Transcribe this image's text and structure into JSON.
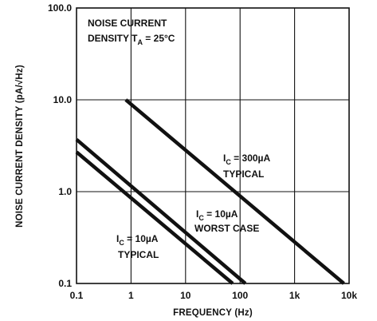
{
  "chart_data": {
    "type": "line",
    "xscale": "log",
    "yscale": "log",
    "xlim": [
      0.1,
      10000
    ],
    "ylim": [
      0.1,
      100
    ],
    "grid": true,
    "xlabel": "FREQUENCY (Hz)",
    "ylabel": "NOISE CURRENT DENSITY (pA/√Hz)",
    "x_ticks": [
      {
        "value": 0.1,
        "label": "0.1"
      },
      {
        "value": 1,
        "label": "1"
      },
      {
        "value": 10,
        "label": "10"
      },
      {
        "value": 100,
        "label": "100"
      },
      {
        "value": 1000,
        "label": "1k"
      },
      {
        "value": 10000,
        "label": "10k"
      }
    ],
    "y_ticks": [
      {
        "value": 0.1,
        "label": "0.1"
      },
      {
        "value": 1,
        "label": "1.0"
      },
      {
        "value": 10,
        "label": "10.0"
      },
      {
        "value": 100,
        "label": "100.0"
      }
    ],
    "conditions": {
      "line1": "NOISE CURRENT",
      "line2_main": "DENSITY T",
      "line2_sub": "A",
      "line2_rest": " = 25°C"
    },
    "series": [
      {
        "x": [
          0.8,
          8000
        ],
        "y": [
          10,
          0.1
        ],
        "label": {
          "prefix": "I",
          "sub": "C",
          "rest": " = 300µA",
          "line2": "TYPICAL"
        }
      },
      {
        "x": [
          0.1,
          125
        ],
        "y": [
          3.7,
          0.1
        ],
        "label": {
          "prefix": "I",
          "sub": "C",
          "rest": " = 10µA",
          "line2": "WORST CASE"
        }
      },
      {
        "x": [
          0.1,
          73
        ],
        "y": [
          2.7,
          0.1
        ],
        "label": {
          "prefix": "I",
          "sub": "C",
          "rest": " = 10µA",
          "line2": "TYPICAL"
        }
      }
    ]
  }
}
